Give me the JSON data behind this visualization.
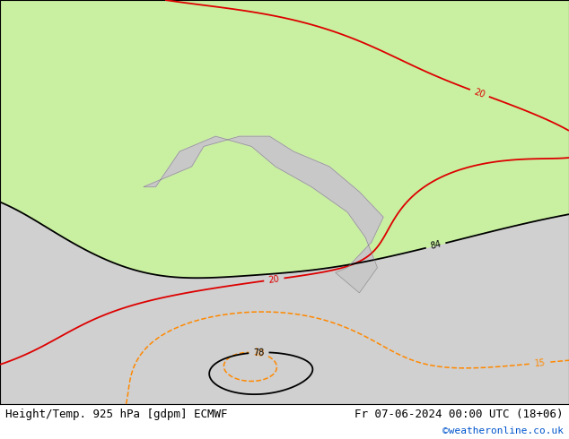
{
  "title_left": "Height/Temp. 925 hPa [gdpm] ECMWF",
  "title_right": "Fr 07-06-2024 00:00 UTC (18+06)",
  "credit": "©weatheronline.co.uk",
  "bg_sea_color": "#d0d0d0",
  "bg_land_color": "#c8c8c8",
  "aus_fill_color": "#c8f0a0",
  "island_fill_color": "#c8f0a0",
  "label_fontsize": 9,
  "credit_fontsize": 8,
  "credit_color": "#0055cc",
  "figsize": [
    6.34,
    4.9
  ],
  "dpi": 100,
  "extent": [
    90,
    185,
    -65,
    15
  ]
}
